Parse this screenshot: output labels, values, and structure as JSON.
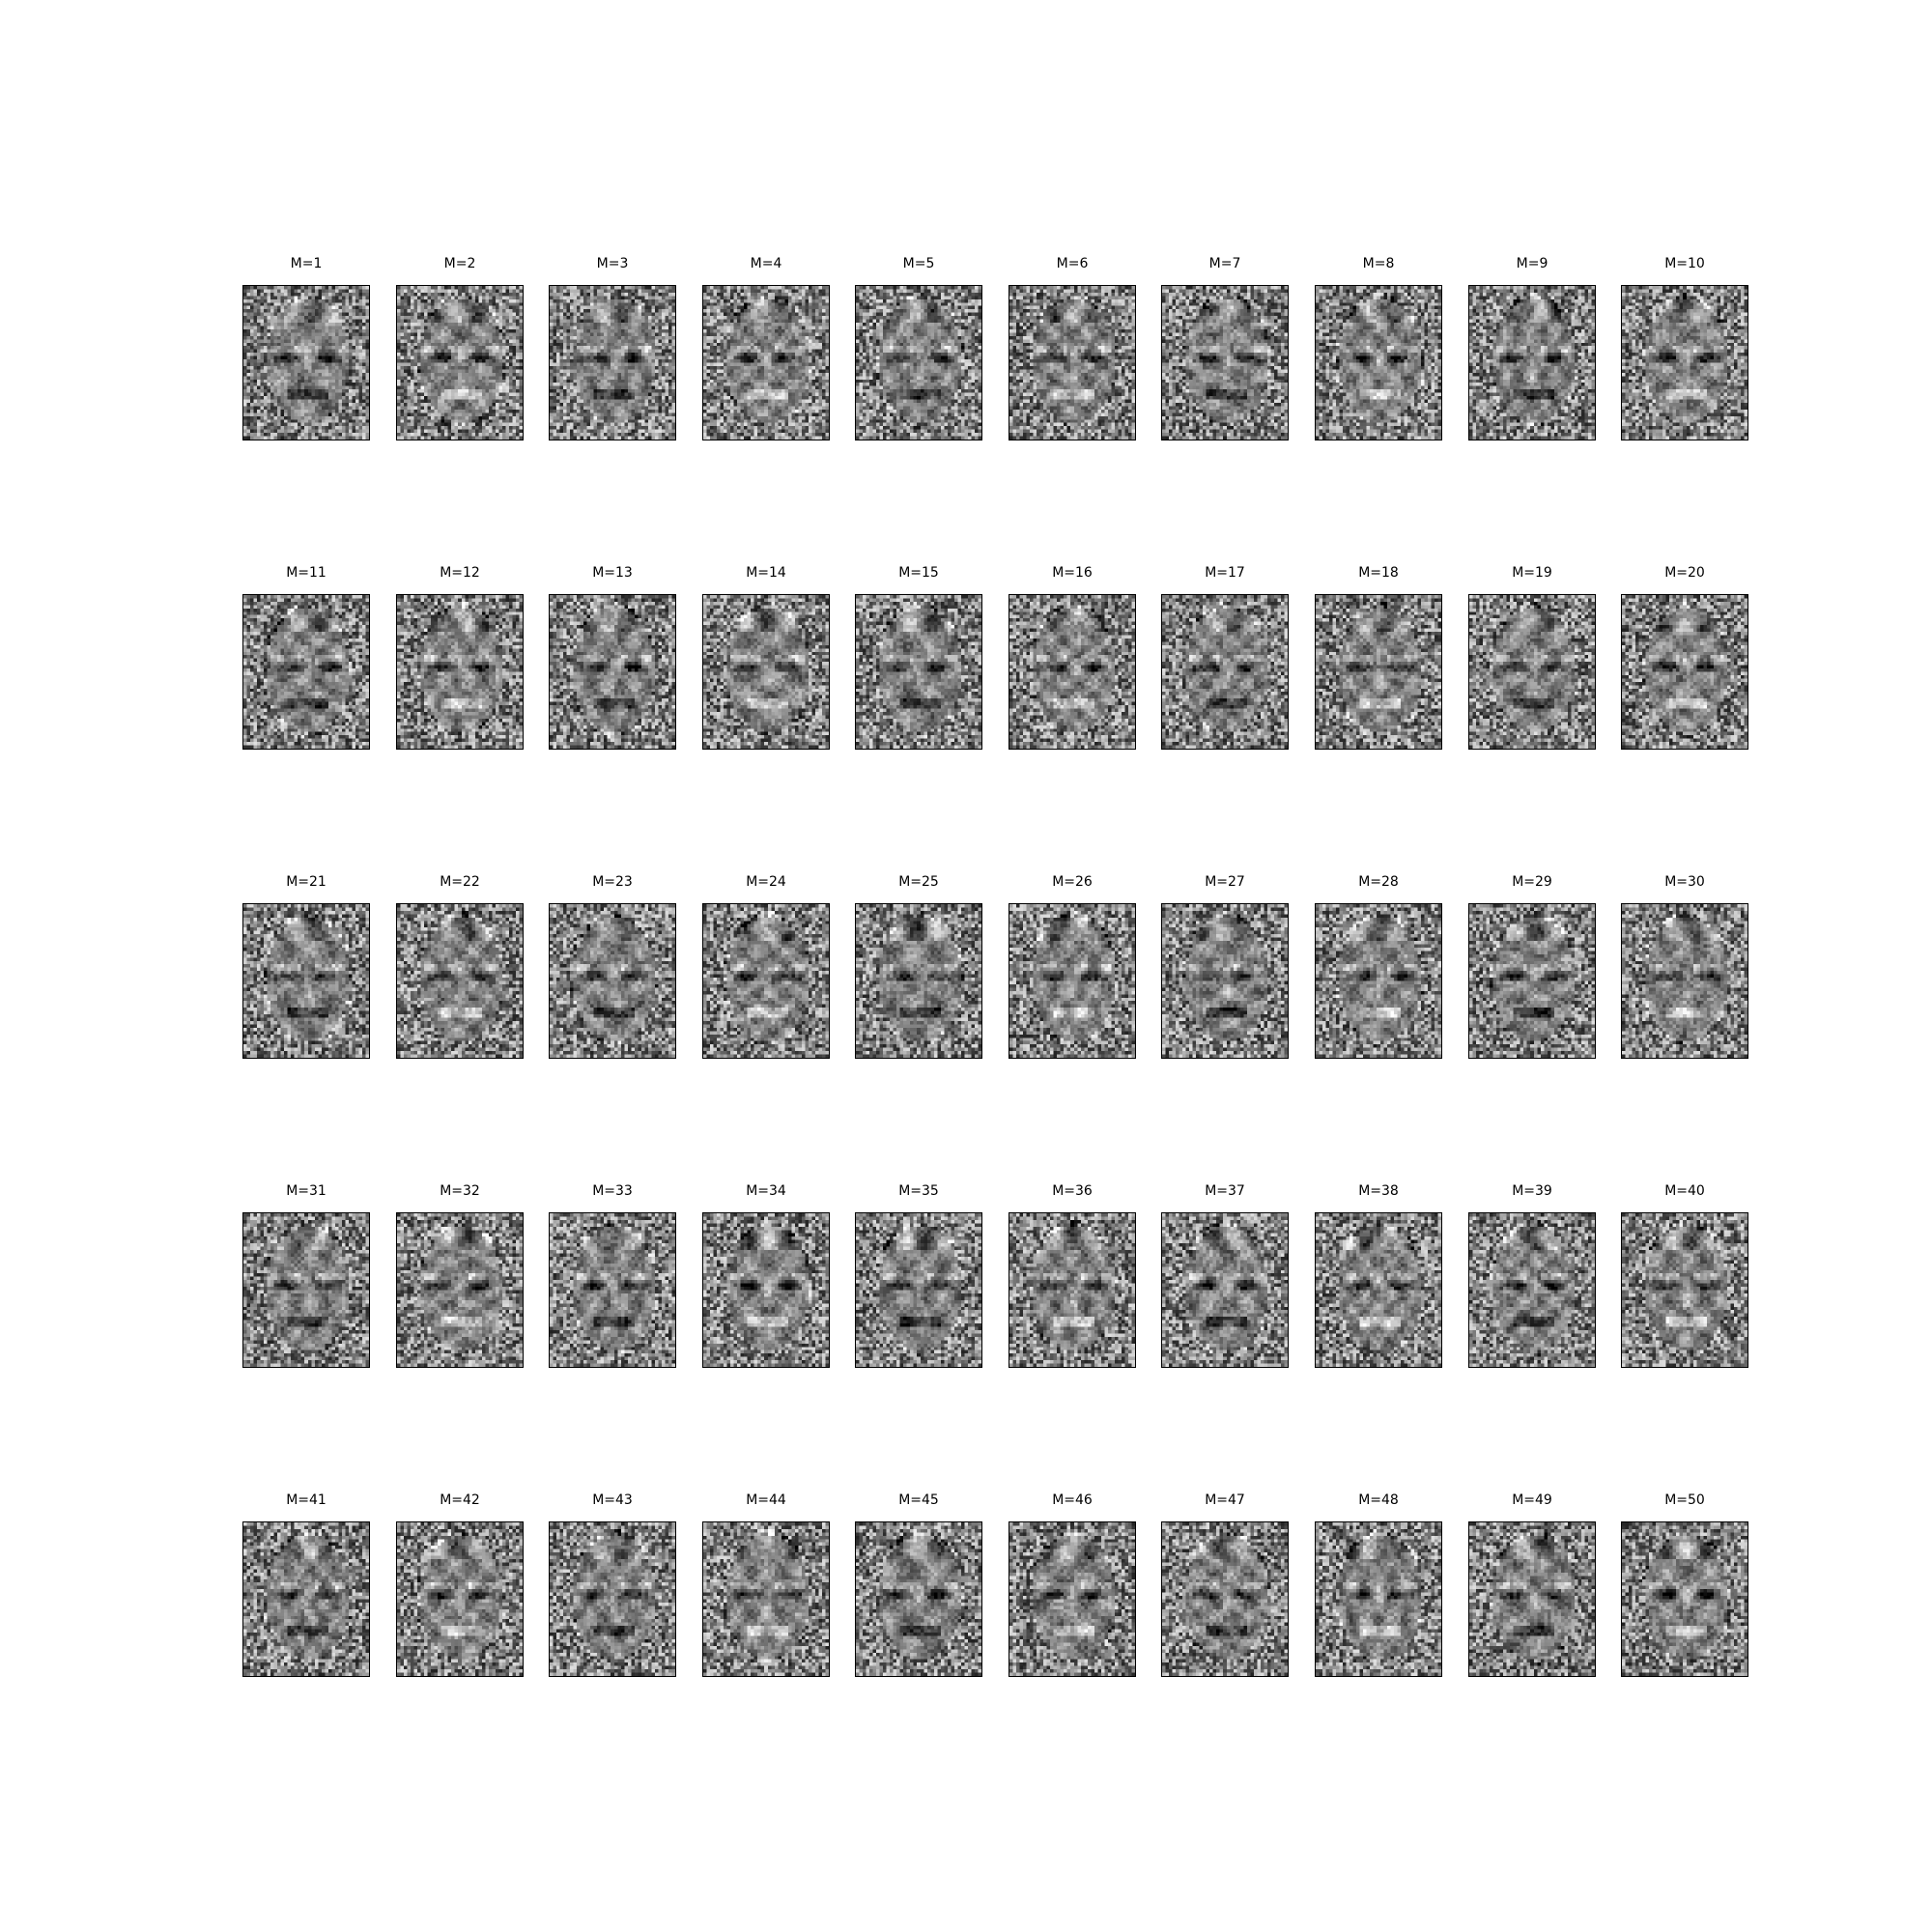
{
  "figure": {
    "colormap": "gray",
    "grid": {
      "rows": 5,
      "cols": 10
    },
    "panels": [
      {
        "title": "M=1"
      },
      {
        "title": "M=2"
      },
      {
        "title": "M=3"
      },
      {
        "title": "M=4"
      },
      {
        "title": "M=5"
      },
      {
        "title": "M=6"
      },
      {
        "title": "M=7"
      },
      {
        "title": "M=8"
      },
      {
        "title": "M=9"
      },
      {
        "title": "M=10"
      },
      {
        "title": "M=11"
      },
      {
        "title": "M=12"
      },
      {
        "title": "M=13"
      },
      {
        "title": "M=14"
      },
      {
        "title": "M=15"
      },
      {
        "title": "M=16"
      },
      {
        "title": "M=17"
      },
      {
        "title": "M=18"
      },
      {
        "title": "M=19"
      },
      {
        "title": "M=20"
      },
      {
        "title": "M=21"
      },
      {
        "title": "M=22"
      },
      {
        "title": "M=23"
      },
      {
        "title": "M=24"
      },
      {
        "title": "M=25"
      },
      {
        "title": "M=26"
      },
      {
        "title": "M=27"
      },
      {
        "title": "M=28"
      },
      {
        "title": "M=29"
      },
      {
        "title": "M=30"
      },
      {
        "title": "M=31"
      },
      {
        "title": "M=32"
      },
      {
        "title": "M=33"
      },
      {
        "title": "M=34"
      },
      {
        "title": "M=35"
      },
      {
        "title": "M=36"
      },
      {
        "title": "M=37"
      },
      {
        "title": "M=38"
      },
      {
        "title": "M=39"
      },
      {
        "title": "M=40"
      },
      {
        "title": "M=41"
      },
      {
        "title": "M=42"
      },
      {
        "title": "M=43"
      },
      {
        "title": "M=44"
      },
      {
        "title": "M=45"
      },
      {
        "title": "M=46"
      },
      {
        "title": "M=47"
      },
      {
        "title": "M=48"
      },
      {
        "title": "M=49"
      },
      {
        "title": "M=50"
      }
    ]
  }
}
